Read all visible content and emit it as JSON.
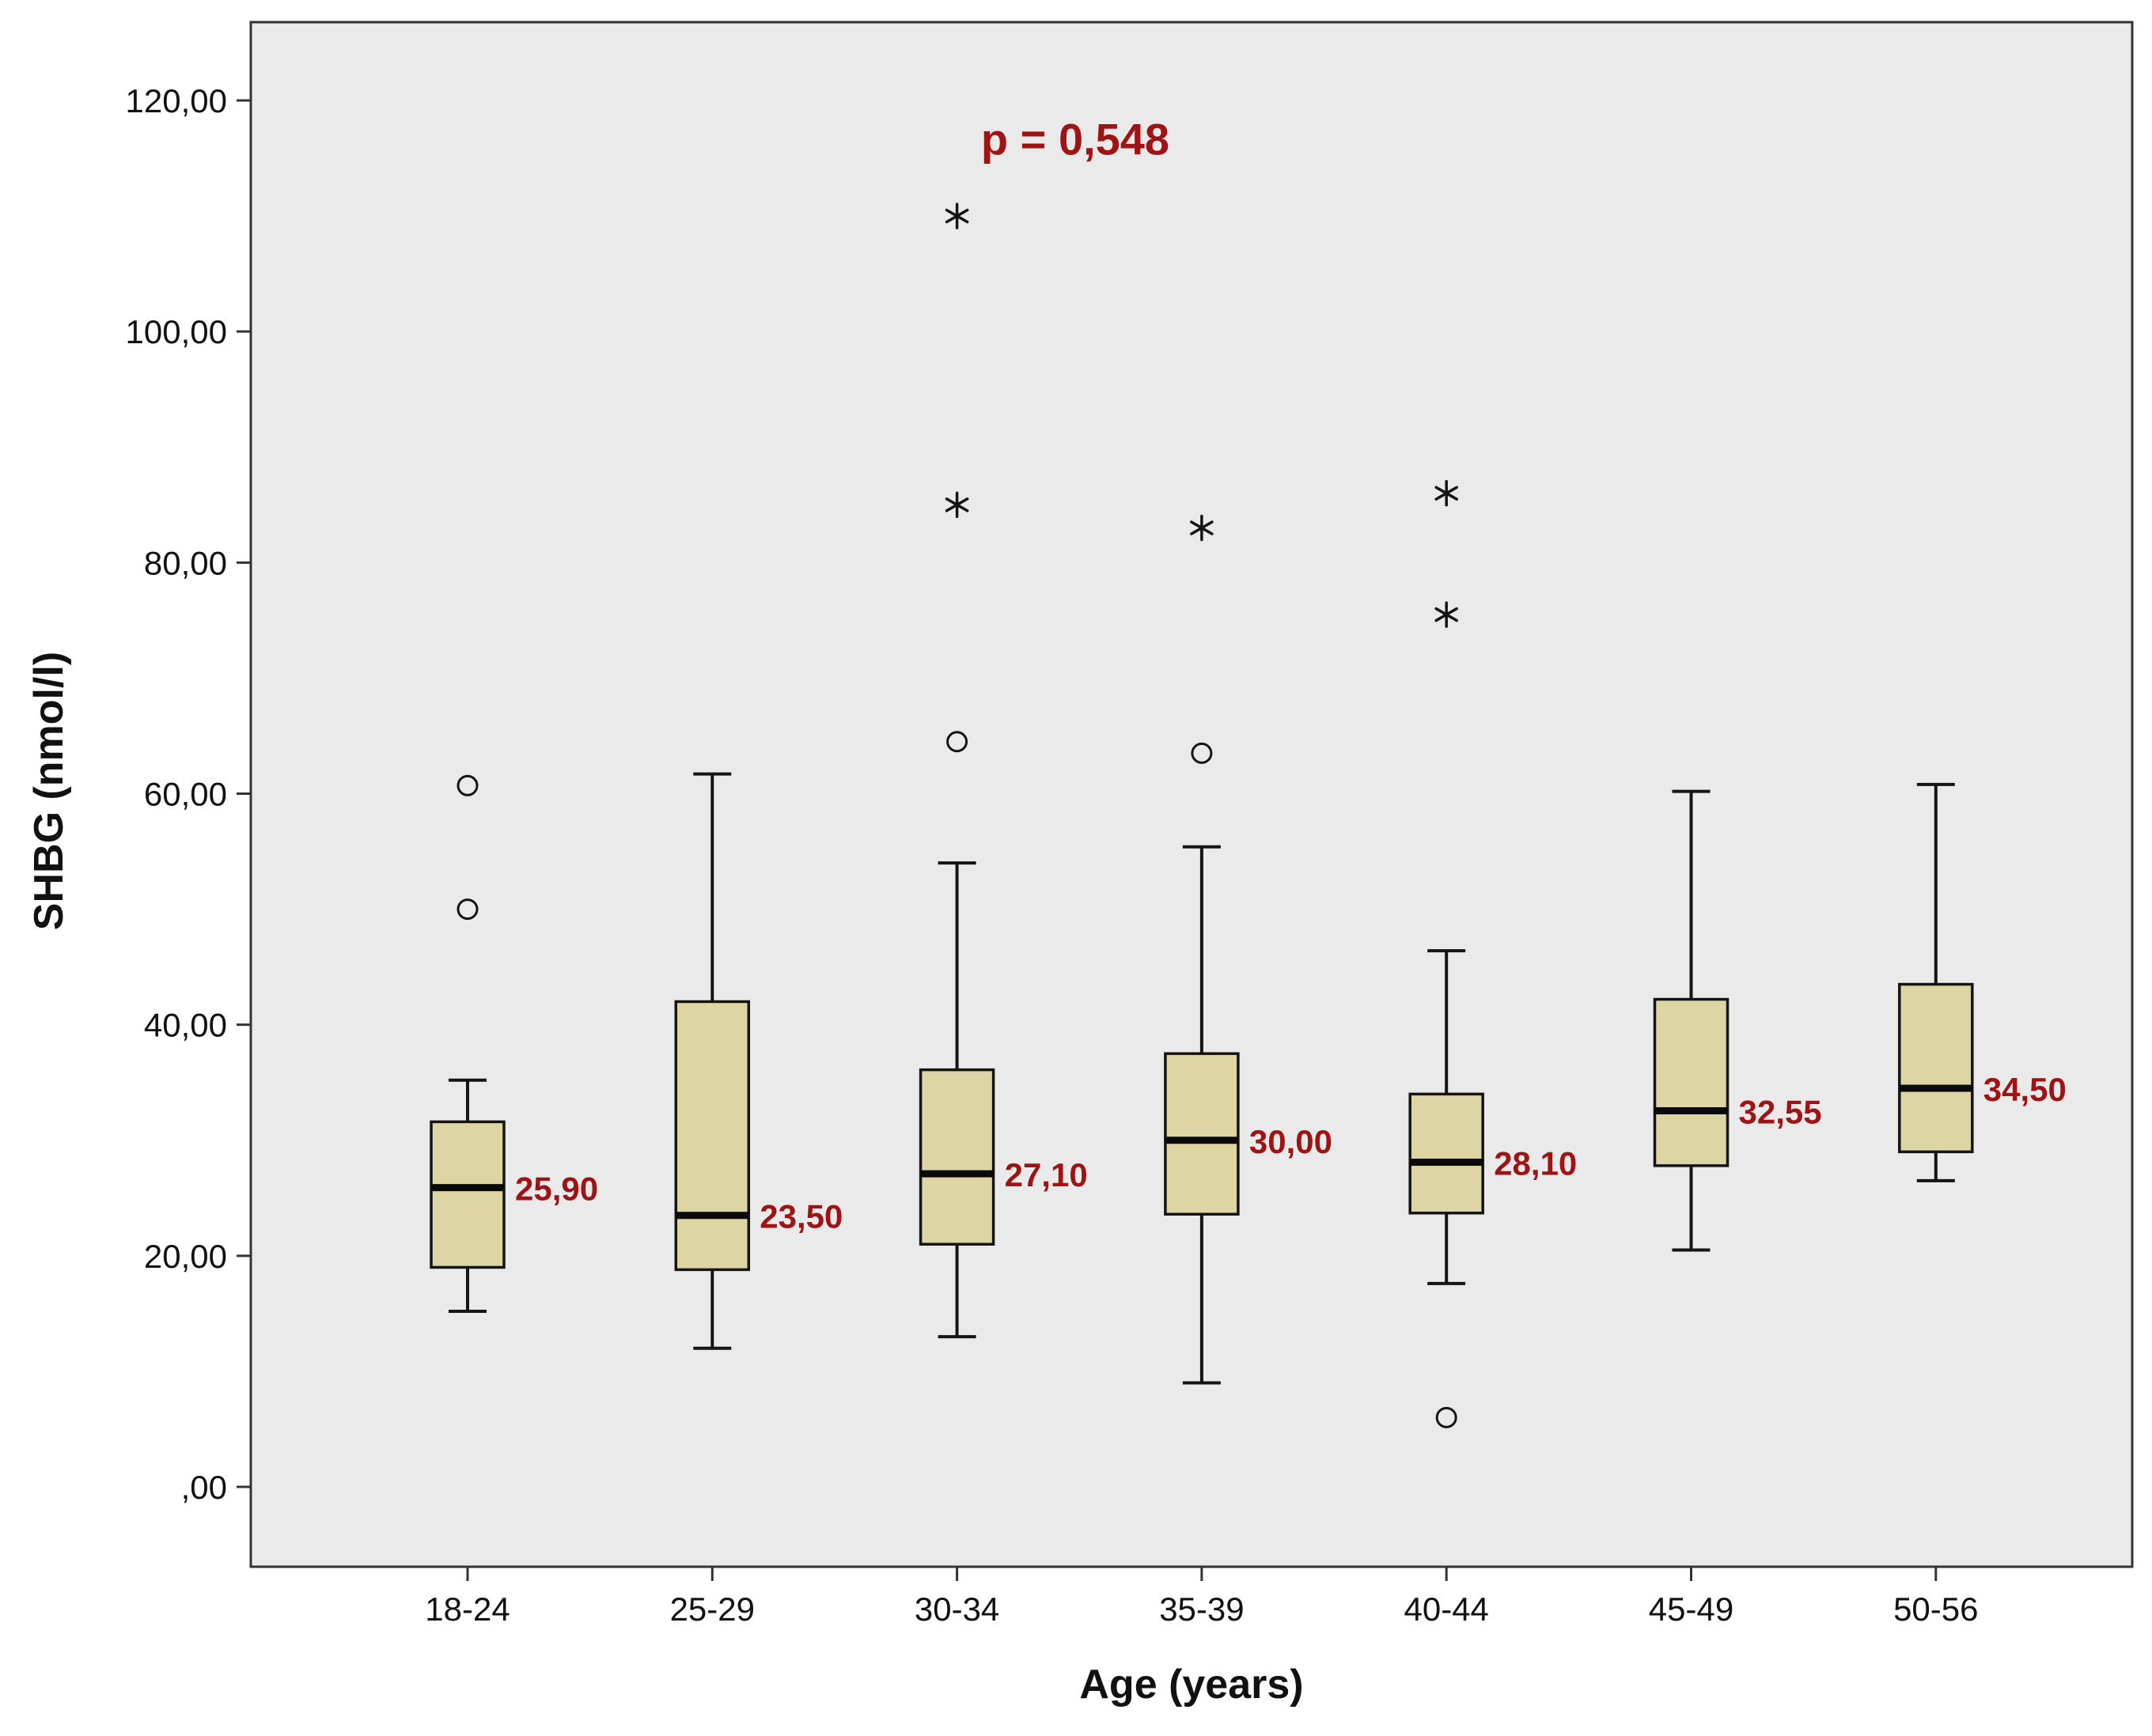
{
  "chart_data": {
    "type": "boxplot",
    "title": "",
    "xlabel": "Age (years)",
    "ylabel": "SHBG (nmol/l)",
    "ylim": [
      0,
      120
    ],
    "yticks": [
      0,
      20,
      40,
      60,
      80,
      100,
      120
    ],
    "ytick_labels": [
      ",00",
      "20,00",
      "40,00",
      "60,00",
      "80,00",
      "100,00",
      "120,00"
    ],
    "grid": false,
    "legend": false,
    "annotation": {
      "text": "p = 0,548"
    },
    "categories": [
      "18-24",
      "25-29",
      "30-34",
      "35-39",
      "40-44",
      "45-49",
      "50-56"
    ],
    "boxes": [
      {
        "category": "18-24",
        "whisker_low": 15.2,
        "q1": 19.0,
        "median": 25.9,
        "q3": 31.6,
        "whisker_high": 35.2,
        "median_label": "25,90",
        "outliers": [
          50.0,
          60.7
        ],
        "extremes": []
      },
      {
        "category": "25-29",
        "whisker_low": 12.0,
        "q1": 18.8,
        "median": 23.5,
        "q3": 42.0,
        "whisker_high": 61.7,
        "median_label": "23,50",
        "outliers": [],
        "extremes": []
      },
      {
        "category": "30-34",
        "whisker_low": 13.0,
        "q1": 21.0,
        "median": 27.1,
        "q3": 36.1,
        "whisker_high": 54.0,
        "median_label": "27,10",
        "outliers": [
          64.5
        ],
        "extremes": [
          85.0,
          110.0
        ]
      },
      {
        "category": "35-39",
        "whisker_low": 9.0,
        "q1": 23.6,
        "median": 30.0,
        "q3": 37.5,
        "whisker_high": 55.4,
        "median_label": "30,00",
        "outliers": [
          63.5
        ],
        "extremes": [
          83.0
        ]
      },
      {
        "category": "40-44",
        "whisker_low": 17.6,
        "q1": 23.7,
        "median": 28.1,
        "q3": 34.0,
        "whisker_high": 46.4,
        "median_label": "28,10",
        "outliers": [
          6.0
        ],
        "extremes": [
          75.5,
          86.0
        ]
      },
      {
        "category": "45-49",
        "whisker_low": 20.5,
        "q1": 27.8,
        "median": 32.55,
        "q3": 42.2,
        "whisker_high": 60.2,
        "median_label": "32,55",
        "outliers": [],
        "extremes": []
      },
      {
        "category": "50-56",
        "whisker_low": 26.5,
        "q1": 29.0,
        "median": 34.5,
        "q3": 43.5,
        "whisker_high": 60.8,
        "median_label": "34,50",
        "outliers": [],
        "extremes": []
      }
    ],
    "colors": {
      "box_fill": "#ddd5a3",
      "box_stroke": "#141414",
      "median_line": "#0a0a0a",
      "median_label": "#9e1414",
      "annotation": "#9e1414",
      "plot_bg": "#eaeaea",
      "frame": "#333333",
      "marker": "#141414"
    }
  }
}
